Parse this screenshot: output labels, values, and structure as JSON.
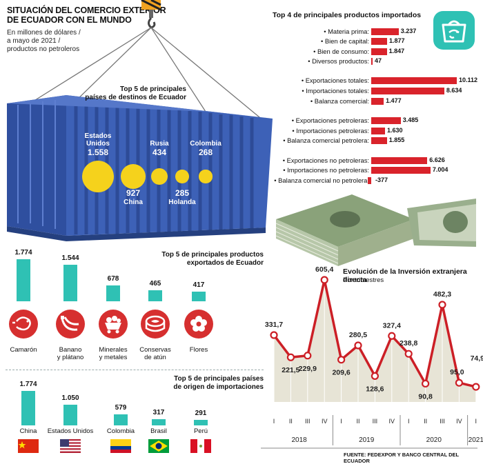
{
  "header": {
    "title_line1": "SITUACIÓN DEL COMERCIO EXTERIOR",
    "title_line2": "DE ECUADOR CON EL MUNDO",
    "subtitle_line1": "En millones de dólares /",
    "subtitle_line2": "a mayo de 2021 /",
    "subtitle_line3": "productos no petroleros"
  },
  "colors": {
    "teal": "#2fc1b4",
    "red": "#d9232b",
    "yellow": "#f5d21c",
    "container_blue": "#3d61b7",
    "line_red": "#cc1f26"
  },
  "chart_data": [
    {
      "type": "bubble",
      "title_line1": "Top 5 de principales",
      "title_line2": "países de destinos de Ecuador",
      "categories": [
        "Estados Unidos",
        "China",
        "Rusia",
        "Holanda",
        "Colombia"
      ],
      "labels": [
        "Estados Unidos",
        "China",
        "Rusia",
        "Holanda",
        "Colombia"
      ],
      "label_lines": [
        [
          "Estados",
          "Unidos"
        ],
        [
          "China"
        ],
        [
          "Rusia"
        ],
        [
          "Holanda"
        ],
        [
          "Colombia"
        ]
      ],
      "values": [
        1558,
        927,
        434,
        285,
        268
      ],
      "value_labels": [
        "1.558",
        "927",
        "434",
        "285",
        "268"
      ]
    },
    {
      "type": "bar",
      "title": "Top 4 de principales productos importados",
      "categories": [
        "• Materia prima:",
        "• Bien de capital:",
        "• Bien de consumo:",
        "• Diversos productos:",
        "• Exportaciones totales:",
        "• Importaciones totales:",
        "• Balanza comercial:",
        "• Exportaciones petroleras:",
        "• Importaciones petroleras:",
        "• Balanza comercial petrolera:",
        "• Exportaciones no petroleras:",
        "• Importaciones no petroleras:",
        "• Balanza comercial no petrolera:"
      ],
      "values": [
        3237,
        1877,
        1847,
        47,
        10112,
        8634,
        1477,
        3485,
        1630,
        1855,
        6626,
        7004,
        -377
      ],
      "value_labels": [
        "3.237",
        "1.877",
        "1.847",
        "47",
        "10.112",
        "8.634",
        "1.477",
        "3.485",
        "1.630",
        "1.855",
        "6.626",
        "7.004",
        "-377"
      ]
    },
    {
      "type": "bar",
      "title_line1": "Top 5 de principales productos",
      "title_line2": "exportados de Ecuador",
      "categories": [
        "Camarón",
        "Banano y plátano",
        "Minerales y metales",
        "Conservas de atún",
        "Flores"
      ],
      "label_lines": [
        [
          "Camarón"
        ],
        [
          "Banano",
          "y plátano"
        ],
        [
          "Minerales",
          "y metales"
        ],
        [
          "Conservas",
          "de atún"
        ],
        [
          "Flores"
        ]
      ],
      "icons": [
        "shrimp-icon",
        "banana-icon",
        "mining-cart-icon",
        "tuna-can-icon",
        "flower-icon"
      ],
      "values": [
        1774,
        1544,
        678,
        465,
        417
      ],
      "value_labels": [
        "1.774",
        "1.544",
        "678",
        "465",
        "417"
      ]
    },
    {
      "type": "bar",
      "title_line1": "Top 5 de principales países",
      "title_line2": "de origen de importaciones",
      "categories": [
        "China",
        "Estados Unidos",
        "Colombia",
        "Brasil",
        "Perú"
      ],
      "flags": [
        "china-flag-icon",
        "usa-flag-icon",
        "colombia-flag-icon",
        "brazil-flag-icon",
        "peru-flag-icon"
      ],
      "values": [
        1774,
        1050,
        579,
        317,
        291
      ],
      "value_labels": [
        "1.774",
        "1.050",
        "579",
        "317",
        "291"
      ]
    },
    {
      "type": "line",
      "title": "Evolución de la Inversión extranjera directa",
      "subtitle": "Por trimestres",
      "x": [
        "I",
        "II",
        "III",
        "IV",
        "I",
        "II",
        "III",
        "IV",
        "I",
        "II",
        "III",
        "IV",
        "I"
      ],
      "years": [
        {
          "label": "2018",
          "quarters": 4
        },
        {
          "label": "2019",
          "quarters": 4
        },
        {
          "label": "2020",
          "quarters": 4
        },
        {
          "label": "2021",
          "quarters": 1
        }
      ],
      "values": [
        331.7,
        221.5,
        229.9,
        605.4,
        209.6,
        280.5,
        128.6,
        327.4,
        238.8,
        90.8,
        482.3,
        95.0,
        74.9
      ],
      "value_labels": [
        "331,7",
        "221,5",
        "229,9",
        "605,4",
        "209,6",
        "280,5",
        "128,6",
        "327,4",
        "238,8",
        "90,8",
        "482,3",
        "95,0",
        "74,9"
      ]
    }
  ],
  "footer": {
    "source": "FUENTE: FEDEXPOR Y BANCO CENTRAL DEL ECUADOR"
  }
}
